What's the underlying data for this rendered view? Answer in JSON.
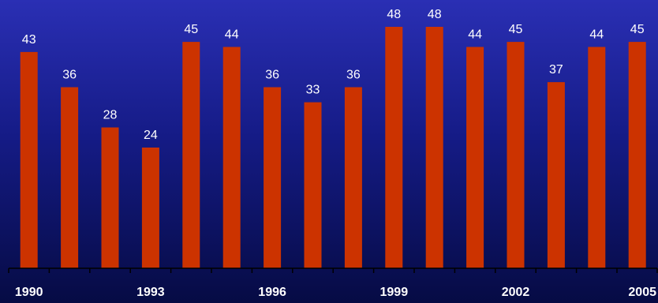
{
  "chart_data": {
    "type": "bar",
    "categories": [
      "1990",
      "1991",
      "1992",
      "1993",
      "1994",
      "1995",
      "1996",
      "1997",
      "1998",
      "1999",
      "2000",
      "2001",
      "2002",
      "2003",
      "2004",
      "2005"
    ],
    "values": [
      43,
      36,
      28,
      24,
      45,
      44,
      36,
      33,
      36,
      48,
      48,
      44,
      45,
      37,
      44,
      45
    ],
    "tick_labels": [
      {
        "category": "1990",
        "label": "1990"
      },
      {
        "category": "1993",
        "label": "1993"
      },
      {
        "category": "1996",
        "label": "1996"
      },
      {
        "category": "1999",
        "label": "1999"
      },
      {
        "category": "2002",
        "label": "2002"
      },
      {
        "category": "2005",
        "label": "2005"
      }
    ],
    "title": "",
    "xlabel": "",
    "ylabel": "",
    "ylim": [
      0,
      48
    ],
    "grid": false,
    "legend": "none",
    "data_labels": true,
    "colors": {
      "bar": "#cc3300",
      "axis": "#000000",
      "text": "#ffffff"
    }
  }
}
